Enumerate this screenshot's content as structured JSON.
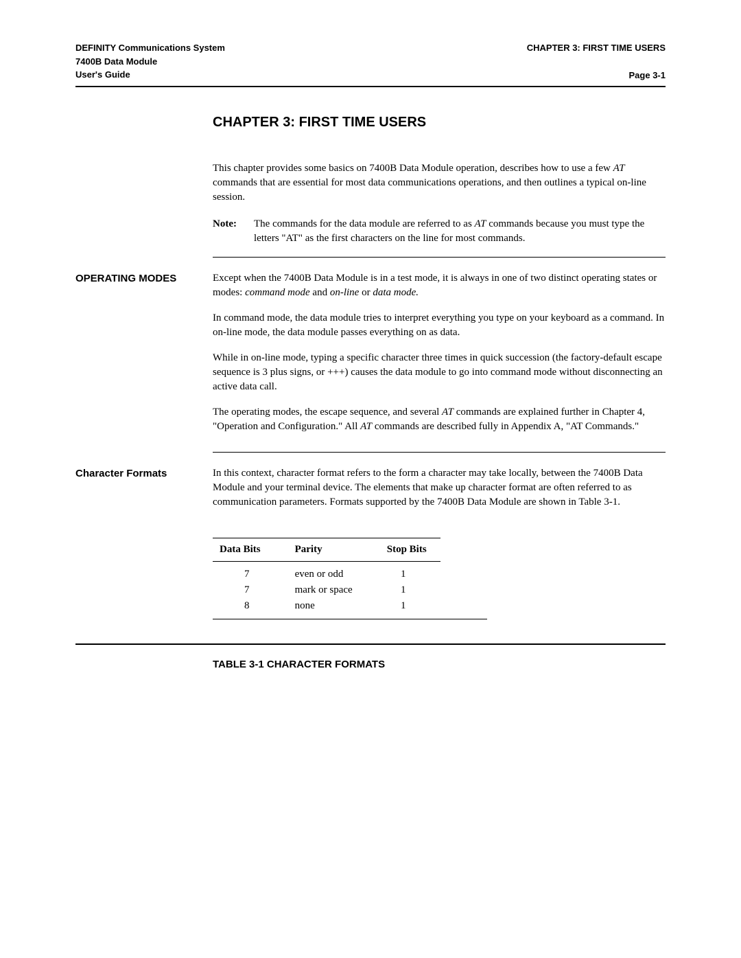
{
  "header": {
    "left_line1": "DEFINITY Communications System",
    "left_line2": "7400B Data Module",
    "left_line3": "User's Guide",
    "right_line1": "CHAPTER 3: FIRST TIME USERS",
    "page_num": "Page 3-1"
  },
  "chapter_title": "CHAPTER 3: FIRST TIME USERS",
  "intro": {
    "para1a": "This chapter provides some basics on 7400B Data Module operation, describes how to use a few ",
    "para1_italic": "AT",
    "para1b": " commands that are essential for most data communications operations, and then outlines a typical on-line session.",
    "note_label": "Note:",
    "note_a": "The commands for the data module are referred to as ",
    "note_italic": "AT",
    "note_b": " commands because you must type the letters \"AT\" as the first characters on the line for most commands."
  },
  "operating_modes": {
    "heading": "OPERATING MODES",
    "p1a": "Except when the 7400B Data Module is in a test mode, it is always in one of two distinct operating states or modes: ",
    "p1_i1": "command mode",
    "p1b": " and ",
    "p1_i2": "on-line",
    "p1c": " or ",
    "p1_i3": "data mode.",
    "p2": "In command mode, the data module tries to interpret everything you type on your keyboard as a command. In on-line mode, the data module passes everything on as data.",
    "p3": "While in on-line mode, typing a specific character three times in quick succession (the factory-default escape sequence is 3 plus signs, or +++) causes the data module to go into command mode without disconnecting an active data call.",
    "p4a": "The operating modes, the escape sequence, and several ",
    "p4_i1": "AT",
    "p4b": " commands are explained further in Chapter 4, \"Operation and Configuration.\" All ",
    "p4_i2": "AT",
    "p4c": " commands are described fully in Appendix A, \"AT Commands.\""
  },
  "character_formats": {
    "heading": "Character Formats",
    "p1": "In this context, character format refers to the form a character may take locally, between the 7400B Data Module and your terminal device. The elements that make up character format are often referred to as communication parameters. Formats supported by the 7400B Data Module are shown in Table 3-1."
  },
  "table": {
    "col1": "Data Bits",
    "col2": "Parity",
    "col3": "Stop Bits",
    "rows": [
      {
        "c1": "7",
        "c2": "even or odd",
        "c3": "1"
      },
      {
        "c1": "7",
        "c2": "mark or space",
        "c3": "1"
      },
      {
        "c1": "8",
        "c2": "none",
        "c3": "1"
      }
    ],
    "caption": "TABLE 3-1 CHARACTER FORMATS"
  }
}
